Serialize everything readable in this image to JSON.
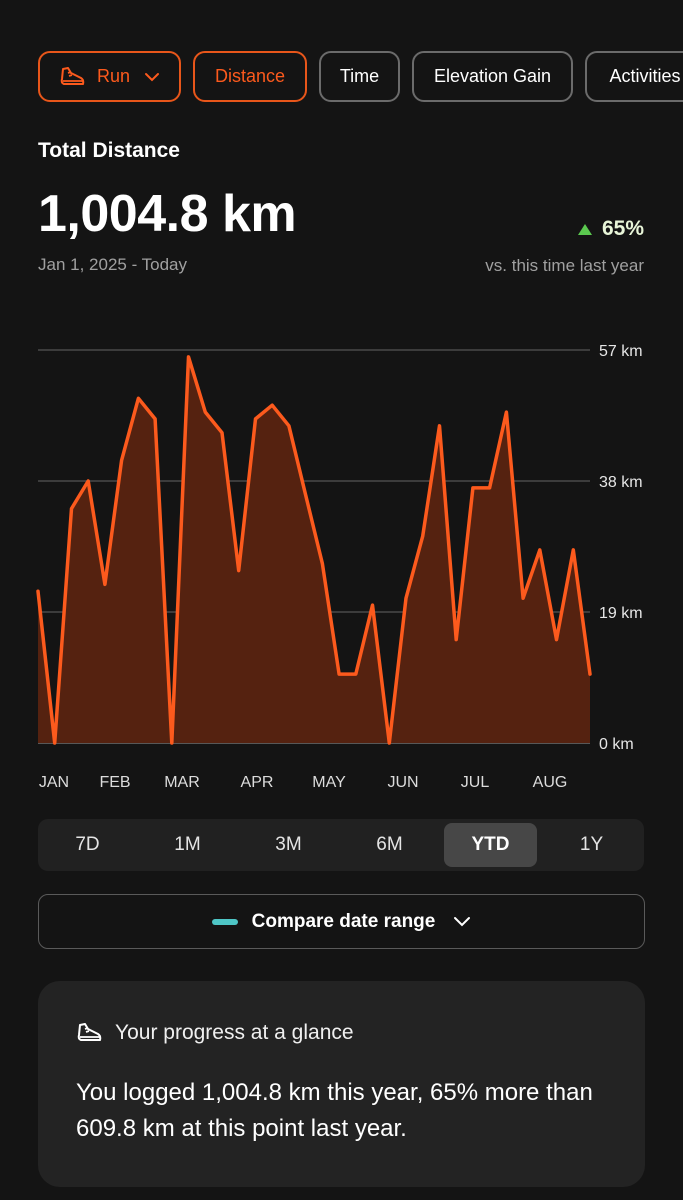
{
  "filters": [
    {
      "label": "Run",
      "active": true,
      "icon": "shoe-icon",
      "dropdown": true
    },
    {
      "label": "Distance",
      "active": true
    },
    {
      "label": "Time",
      "active": false
    },
    {
      "label": "Elevation Gain",
      "active": false
    },
    {
      "label": "Activities",
      "active": false
    }
  ],
  "summary": {
    "title": "Total Distance",
    "value": "1,004.8 km",
    "range": "Jan 1, 2025 - Today",
    "change": "65%",
    "change_direction": "up",
    "comparison": "vs. this time last year"
  },
  "chart_data": {
    "type": "area",
    "y_ticks": [
      "57 km",
      "38 km",
      "19 km",
      "0 km"
    ],
    "ylim": [
      0,
      57
    ],
    "x_labels": [
      "JAN",
      "FEB",
      "MAR",
      "APR",
      "MAY",
      "JUN",
      "JUL",
      "AUG"
    ],
    "grid": true,
    "color": "#fc5a1d",
    "fill": "#552210",
    "values": [
      22,
      0,
      34,
      38,
      23,
      41,
      50,
      47,
      0,
      56,
      48,
      45,
      25,
      47,
      49,
      46,
      36,
      26,
      10,
      10,
      20,
      0,
      21,
      30,
      46,
      15,
      37,
      37,
      48,
      21,
      28,
      15,
      28,
      10
    ]
  },
  "periods": [
    {
      "label": "7D",
      "active": false
    },
    {
      "label": "1M",
      "active": false
    },
    {
      "label": "3M",
      "active": false
    },
    {
      "label": "6M",
      "active": false
    },
    {
      "label": "YTD",
      "active": true
    },
    {
      "label": "1Y",
      "active": false
    }
  ],
  "compare": {
    "label": "Compare date range",
    "color": "#4ec6c6"
  },
  "progress_card": {
    "heading": "Your progress at a glance",
    "body": "You logged 1,004.8 km this year, 65% more than 609.8 km at this point last year."
  }
}
